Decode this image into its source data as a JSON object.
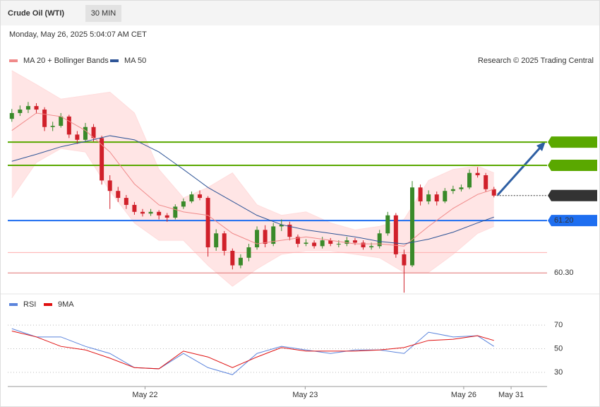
{
  "chart_data": [
    {
      "type": "candlestick",
      "title": "Crude Oil (WTI)",
      "timeframe": "30 MIN",
      "subtitle": "Monday, May 26, 2025 5:04:07 AM CET",
      "credit": "Research © 2025 Trading Central",
      "xlim": [
        -0.5,
        65.5
      ],
      "ylim": [
        59.95,
        63.84
      ],
      "candles": {
        "up_color": "#3a8a2a",
        "down_color": "#d0202a",
        "open": [
          62.95,
          63.05,
          63.11,
          63.17,
          63.11,
          62.81,
          62.83,
          62.99,
          62.68,
          62.59,
          62.81,
          62.62,
          61.89,
          61.71,
          61.59,
          61.47,
          61.35,
          61.32,
          61.35,
          61.29,
          61.25,
          61.44,
          61.53,
          61.65,
          61.59,
          60.74,
          60.98,
          60.68,
          60.43,
          60.56,
          60.74,
          61.04,
          60.8,
          61.1,
          61.13,
          60.92,
          60.8,
          60.82,
          60.76,
          60.86,
          60.8,
          60.8,
          60.86,
          60.82,
          60.74,
          60.76,
          60.98,
          61.29,
          60.62,
          60.43,
          61.77,
          61.53,
          61.65,
          61.53,
          61.71,
          61.74,
          61.77,
          62.02,
          61.98,
          61.74
        ],
        "high": [
          63.12,
          63.18,
          63.24,
          63.22,
          63.15,
          62.9,
          63.05,
          63.02,
          62.74,
          62.88,
          62.86,
          62.66,
          61.98,
          61.78,
          61.64,
          61.52,
          61.4,
          61.4,
          61.38,
          61.33,
          61.48,
          61.58,
          61.7,
          61.72,
          61.62,
          61.05,
          61.02,
          60.72,
          60.62,
          60.8,
          61.1,
          61.12,
          61.16,
          61.22,
          61.18,
          60.96,
          60.88,
          60.86,
          60.92,
          60.9,
          60.86,
          60.92,
          60.9,
          60.86,
          60.82,
          61.04,
          61.35,
          61.33,
          60.7,
          61.88,
          61.82,
          61.72,
          61.7,
          61.76,
          61.8,
          61.82,
          62.08,
          62.12,
          62.02,
          61.78
        ],
        "low": [
          62.9,
          63.0,
          63.05,
          63.04,
          62.74,
          62.74,
          62.8,
          62.62,
          62.52,
          62.55,
          62.56,
          61.82,
          61.4,
          61.52,
          61.4,
          61.3,
          61.27,
          61.28,
          61.22,
          61.18,
          61.22,
          61.4,
          61.5,
          61.55,
          60.58,
          60.68,
          60.6,
          60.36,
          60.38,
          60.5,
          60.7,
          60.74,
          60.76,
          61.02,
          60.86,
          60.74,
          60.76,
          60.72,
          60.72,
          60.76,
          60.74,
          60.76,
          60.78,
          60.7,
          60.7,
          60.72,
          60.94,
          60.56,
          59.96,
          60.4,
          61.46,
          61.48,
          61.46,
          61.5,
          61.66,
          61.7,
          61.74,
          61.94,
          61.7,
          61.6
        ],
        "close": [
          63.05,
          63.11,
          63.17,
          63.11,
          62.81,
          62.83,
          62.99,
          62.68,
          62.59,
          62.81,
          62.62,
          61.89,
          61.71,
          61.59,
          61.47,
          61.35,
          61.32,
          61.35,
          61.29,
          61.25,
          61.44,
          61.53,
          61.65,
          61.59,
          60.74,
          60.98,
          60.68,
          60.43,
          60.56,
          60.74,
          61.04,
          60.8,
          61.1,
          61.13,
          60.92,
          60.8,
          60.82,
          60.76,
          60.86,
          60.8,
          60.8,
          60.86,
          60.82,
          60.74,
          60.76,
          60.98,
          61.29,
          60.62,
          60.43,
          61.77,
          61.53,
          61.65,
          61.53,
          61.71,
          61.74,
          61.77,
          62.02,
          61.98,
          61.74,
          61.63
        ]
      },
      "series": [
        {
          "name": "MA 20 + Bollinger Bands",
          "color": "#f08a8a",
          "x": [
            0,
            3,
            6,
            9,
            12,
            15,
            18,
            21,
            24,
            27,
            30,
            33,
            36,
            39,
            42,
            45,
            48,
            51,
            54,
            57,
            59
          ],
          "values": [
            62.75,
            63.05,
            62.99,
            62.75,
            62.38,
            61.83,
            61.47,
            61.35,
            61.29,
            60.98,
            60.8,
            60.86,
            60.92,
            60.86,
            60.8,
            60.8,
            60.76,
            61.1,
            61.41,
            61.65,
            61.74
          ]
        },
        {
          "name": "MA 50",
          "color": "#2f5597",
          "x": [
            0,
            3,
            6,
            9,
            12,
            15,
            18,
            21,
            24,
            27,
            30,
            33,
            36,
            39,
            42,
            45,
            48,
            51,
            54,
            57,
            59
          ],
          "values": [
            62.22,
            62.34,
            62.47,
            62.56,
            62.66,
            62.59,
            62.38,
            62.08,
            61.77,
            61.53,
            61.29,
            61.13,
            61.04,
            60.98,
            60.92,
            60.84,
            60.8,
            60.88,
            61.0,
            61.16,
            61.26
          ]
        }
      ],
      "bands": {
        "color": "#ffdcdc",
        "upper": [
          63.78,
          63.54,
          63.29,
          63.35,
          63.41,
          63.05,
          62.08,
          61.59,
          61.77,
          62.02,
          61.47,
          61.29,
          61.35,
          61.16,
          61.04,
          61.1,
          61.22,
          61.89,
          62.08,
          62.14,
          62.02
        ],
        "lower": [
          61.59,
          62.2,
          62.44,
          62.38,
          61.71,
          61.16,
          60.86,
          60.86,
          60.43,
          60.07,
          60.37,
          60.62,
          60.68,
          60.68,
          60.62,
          60.56,
          60.31,
          60.31,
          60.62,
          60.98,
          61.1
        ]
      },
      "levels": [
        {
          "value": 62.55,
          "color": "#5aa800",
          "style": "tag"
        },
        {
          "value": 62.15,
          "color": "#5aa800",
          "style": "tag"
        },
        {
          "value": 61.63,
          "color": "#333333",
          "style": "tag",
          "dashed": true
        },
        {
          "value": 61.2,
          "label": "61.20",
          "color": "#1e6ef0",
          "style": "tag"
        },
        {
          "value": 60.65,
          "color": "#ffadad",
          "style": "text"
        },
        {
          "value": 60.3,
          "label": "60.30",
          "color": "#e07070",
          "style": "text"
        }
      ]
    },
    {
      "type": "line",
      "xlim": [
        -0.5,
        65.5
      ],
      "ylim": [
        18,
        94
      ],
      "yticks": [
        30,
        50,
        70
      ],
      "grid": true,
      "xticks": [
        {
          "value": 16.3,
          "label": "May 22"
        },
        {
          "value": 35.9,
          "label": "May 23"
        },
        {
          "value": 55.3,
          "label": "May 26"
        },
        {
          "value": 61.1,
          "label": "May 31"
        }
      ],
      "series": [
        {
          "name": "RSI",
          "color": "#5b84dc",
          "x": [
            0,
            3,
            6,
            9,
            12,
            15,
            18,
            21,
            24,
            27,
            30,
            33,
            36,
            39,
            42,
            45,
            48,
            51,
            54,
            57,
            59
          ],
          "values": [
            67,
            60,
            60,
            52,
            46,
            34,
            33,
            46,
            34,
            28,
            46,
            52,
            49,
            46,
            49,
            49,
            46,
            64,
            60,
            61,
            52
          ]
        },
        {
          "name": "9MA",
          "color": "#e01010",
          "x": [
            0,
            3,
            6,
            9,
            12,
            15,
            18,
            21,
            24,
            27,
            30,
            33,
            36,
            39,
            42,
            45,
            48,
            51,
            54,
            57,
            59
          ],
          "values": [
            65,
            60,
            52,
            49,
            42,
            34,
            33,
            48,
            43,
            34,
            43,
            51,
            48,
            48,
            48,
            49,
            51,
            57,
            58,
            61,
            57
          ]
        }
      ]
    }
  ]
}
